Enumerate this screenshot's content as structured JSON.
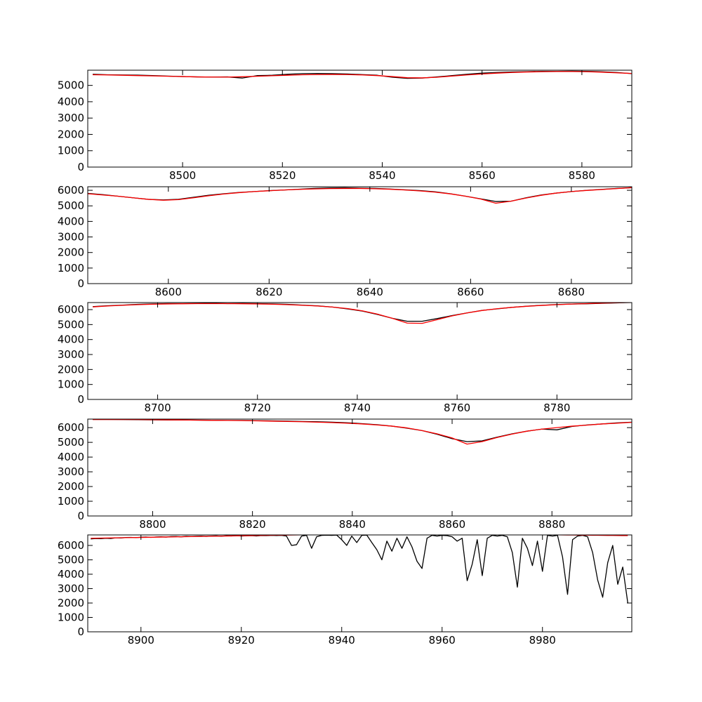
{
  "chart_data": [
    {
      "type": "line",
      "x": [
        8482,
        8485,
        8488,
        8491,
        8494,
        8497,
        8500,
        8503,
        8506,
        8509,
        8512,
        8515,
        8518,
        8521,
        8524,
        8527,
        8530,
        8533,
        8536,
        8539,
        8542,
        8545,
        8548,
        8551,
        8554,
        8557,
        8560,
        8563,
        8566,
        8569,
        8572,
        8575,
        8578,
        8581,
        8584,
        8587,
        8590
      ],
      "xlim": [
        8481,
        8590
      ],
      "ylim": [
        0,
        5930
      ],
      "xticks": [
        8500,
        8520,
        8540,
        8560,
        8580
      ],
      "yticks": [
        0,
        1000,
        2000,
        3000,
        4000,
        5000
      ],
      "series": [
        {
          "color": "#000000",
          "values": [
            5680,
            5650,
            5640,
            5630,
            5600,
            5570,
            5540,
            5520,
            5510,
            5520,
            5450,
            5600,
            5620,
            5680,
            5720,
            5730,
            5720,
            5700,
            5660,
            5620,
            5500,
            5430,
            5450,
            5520,
            5600,
            5680,
            5750,
            5790,
            5820,
            5840,
            5860,
            5860,
            5870,
            5860,
            5830,
            5790,
            5720
          ]
        },
        {
          "color": "#ff0000",
          "values": [
            5650,
            5640,
            5620,
            5600,
            5580,
            5560,
            5540,
            5520,
            5510,
            5510,
            5530,
            5560,
            5590,
            5620,
            5650,
            5660,
            5670,
            5660,
            5640,
            5600,
            5540,
            5470,
            5460,
            5500,
            5570,
            5640,
            5700,
            5750,
            5790,
            5820,
            5840,
            5850,
            5850,
            5840,
            5810,
            5770,
            5730
          ]
        }
      ]
    },
    {
      "type": "line",
      "x": [
        8584,
        8587,
        8590,
        8593,
        8596,
        8599,
        8602,
        8605,
        8608,
        8611,
        8614,
        8617,
        8620,
        8623,
        8626,
        8629,
        8632,
        8635,
        8638,
        8641,
        8644,
        8647,
        8650,
        8653,
        8656,
        8659,
        8662,
        8665,
        8668,
        8671,
        8674,
        8677,
        8680,
        8683,
        8686,
        8689,
        8692
      ],
      "xlim": [
        8584,
        8692
      ],
      "ylim": [
        0,
        6230
      ],
      "xticks": [
        8600,
        8620,
        8640,
        8660,
        8680
      ],
      "yticks": [
        0,
        1000,
        2000,
        3000,
        4000,
        5000,
        6000
      ],
      "series": [
        {
          "color": "#000000",
          "values": [
            5800,
            5720,
            5620,
            5520,
            5420,
            5380,
            5420,
            5550,
            5680,
            5780,
            5860,
            5920,
            5980,
            6020,
            6070,
            6120,
            6150,
            6160,
            6140,
            6120,
            6080,
            6030,
            5980,
            5900,
            5780,
            5620,
            5450,
            5280,
            5300,
            5520,
            5700,
            5820,
            5920,
            6000,
            6060,
            6120,
            6170
          ]
        },
        {
          "color": "#ff0000",
          "values": [
            5780,
            5700,
            5620,
            5520,
            5420,
            5360,
            5400,
            5520,
            5650,
            5760,
            5850,
            5920,
            5970,
            6020,
            6060,
            6090,
            6110,
            6120,
            6120,
            6100,
            6070,
            6020,
            5960,
            5880,
            5770,
            5620,
            5440,
            5170,
            5300,
            5500,
            5680,
            5820,
            5920,
            5990,
            6050,
            6110,
            6170
          ]
        }
      ]
    },
    {
      "type": "line",
      "x": [
        8687,
        8690,
        8693,
        8696,
        8699,
        8702,
        8705,
        8708,
        8711,
        8714,
        8717,
        8720,
        8723,
        8726,
        8729,
        8732,
        8735,
        8738,
        8741,
        8744,
        8747,
        8750,
        8753,
        8756,
        8759,
        8762,
        8765,
        8768,
        8771,
        8774,
        8777,
        8780,
        8783,
        8786,
        8789,
        8792,
        8795
      ],
      "xlim": [
        8686,
        8795
      ],
      "ylim": [
        0,
        6470
      ],
      "xticks": [
        8700,
        8720,
        8740,
        8760,
        8780
      ],
      "yticks": [
        0,
        1000,
        2000,
        3000,
        4000,
        5000,
        6000
      ],
      "series": [
        {
          "color": "#000000",
          "values": [
            6200,
            6260,
            6300,
            6350,
            6380,
            6400,
            6400,
            6410,
            6420,
            6400,
            6410,
            6400,
            6380,
            6350,
            6300,
            6250,
            6170,
            6050,
            5900,
            5680,
            5420,
            5220,
            5220,
            5400,
            5600,
            5780,
            5950,
            6050,
            6150,
            6230,
            6290,
            6340,
            6370,
            6390,
            6420,
            6450,
            6480
          ]
        },
        {
          "color": "#ff0000",
          "values": [
            6180,
            6240,
            6290,
            6330,
            6360,
            6380,
            6390,
            6400,
            6400,
            6400,
            6390,
            6380,
            6360,
            6330,
            6290,
            6240,
            6170,
            6070,
            5920,
            5700,
            5420,
            5100,
            5080,
            5330,
            5580,
            5780,
            5940,
            6060,
            6150,
            6220,
            6280,
            6330,
            6370,
            6400,
            6430,
            6460,
            6480
          ]
        }
      ]
    },
    {
      "type": "line",
      "x": [
        8788,
        8791,
        8794,
        8797,
        8800,
        8803,
        8806,
        8809,
        8812,
        8815,
        8818,
        8821,
        8824,
        8827,
        8830,
        8833,
        8836,
        8839,
        8842,
        8845,
        8848,
        8851,
        8854,
        8857,
        8860,
        8863,
        8866,
        8869,
        8872,
        8875,
        8878,
        8881,
        8884,
        8887,
        8890,
        8893,
        8896
      ],
      "xlim": [
        8787,
        8896
      ],
      "ylim": [
        0,
        6580
      ],
      "xticks": [
        8800,
        8820,
        8840,
        8860,
        8880
      ],
      "yticks": [
        0,
        1000,
        2000,
        3000,
        4000,
        5000,
        6000
      ],
      "series": [
        {
          "color": "#000000",
          "values": [
            6560,
            6560,
            6550,
            6540,
            6530,
            6520,
            6520,
            6510,
            6500,
            6490,
            6490,
            6470,
            6460,
            6440,
            6420,
            6400,
            6370,
            6330,
            6270,
            6200,
            6100,
            5960,
            5800,
            5550,
            5250,
            5050,
            5100,
            5350,
            5580,
            5760,
            5900,
            5850,
            6080,
            6180,
            6250,
            6320,
            6370
          ]
        },
        {
          "color": "#ff0000",
          "values": [
            6550,
            6550,
            6550,
            6550,
            6540,
            6530,
            6520,
            6510,
            6500,
            6490,
            6480,
            6460,
            6440,
            6420,
            6400,
            6370,
            6340,
            6300,
            6250,
            6180,
            6100,
            5980,
            5800,
            5580,
            5300,
            4880,
            5050,
            5330,
            5560,
            5760,
            5900,
            6000,
            6100,
            6170,
            6250,
            6300,
            6360
          ]
        }
      ]
    },
    {
      "type": "line",
      "x": [
        8890,
        8891,
        8892,
        8893,
        8894,
        8895,
        8896,
        8897,
        8898,
        8899,
        8900,
        8901,
        8902,
        8903,
        8904,
        8905,
        8906,
        8907,
        8908,
        8909,
        8910,
        8911,
        8912,
        8913,
        8914,
        8915,
        8916,
        8917,
        8918,
        8919,
        8920,
        8921,
        8922,
        8923,
        8924,
        8925,
        8926,
        8927,
        8928,
        8929,
        8930,
        8931,
        8932,
        8933,
        8934,
        8935,
        8936,
        8937,
        8938,
        8939,
        8940,
        8941,
        8942,
        8943,
        8944,
        8945,
        8946,
        8947,
        8948,
        8949,
        8950,
        8951,
        8952,
        8953,
        8954,
        8955,
        8956,
        8957,
        8958,
        8959,
        8960,
        8961,
        8962,
        8963,
        8964,
        8965,
        8966,
        8967,
        8968,
        8969,
        8970,
        8971,
        8972,
        8973,
        8974,
        8975,
        8976,
        8977,
        8978,
        8979,
        8980,
        8981,
        8982,
        8983,
        8984,
        8985,
        8986,
        8987,
        8988,
        8989,
        8990,
        8991,
        8992,
        8993,
        8994,
        8995,
        8996,
        8997
      ],
      "xlim": [
        8889.4,
        8997.8
      ],
      "ylim": [
        0,
        6730
      ],
      "xticks": [
        8900,
        8920,
        8940,
        8960,
        8980
      ],
      "yticks": [
        0,
        1000,
        2000,
        3000,
        4000,
        5000,
        6000
      ],
      "series": [
        {
          "color": "#000000",
          "values": [
            6450,
            6480,
            6470,
            6500,
            6480,
            6530,
            6520,
            6550,
            6560,
            6540,
            6570,
            6580,
            6560,
            6590,
            6600,
            6580,
            6610,
            6620,
            6600,
            6630,
            6620,
            6640,
            6650,
            6630,
            6650,
            6660,
            6640,
            6670,
            6660,
            6680,
            6650,
            6670,
            6680,
            6660,
            6690,
            6680,
            6700,
            6690,
            6700,
            6650,
            6000,
            6050,
            6650,
            6700,
            5800,
            6600,
            6700,
            6710,
            6700,
            6720,
            6400,
            6000,
            6650,
            6200,
            6700,
            6720,
            6200,
            5700,
            5000,
            6300,
            5600,
            6500,
            5800,
            6600,
            5900,
            4900,
            4400,
            6500,
            6700,
            6650,
            6700,
            6680,
            6600,
            6300,
            6500,
            3550,
            4700,
            6400,
            3900,
            6500,
            6700,
            6650,
            6700,
            6600,
            5500,
            3100,
            6500,
            5800,
            4600,
            6300,
            4200,
            6700,
            6650,
            6700,
            5200,
            2600,
            6400,
            6650,
            6700,
            6600,
            5500,
            3600,
            2400,
            4800,
            6000,
            3300,
            4500,
            2000
          ]
        },
        {
          "color": "#ff0000",
          "values": [
            6500,
            6506,
            6511,
            6517,
            6523,
            6529,
            6534,
            6540,
            6546,
            6551,
            6557,
            6563,
            6569,
            6574,
            6580,
            6586,
            6591,
            6597,
            6603,
            6609,
            6614,
            6620,
            6626,
            6631,
            6637,
            6643,
            6649,
            6654,
            6660,
            6666,
            6671,
            6677,
            6683,
            6689,
            6694,
            6700,
            6705,
            6710,
            6715,
            6720,
            6725,
            6730,
            6735,
            6740,
            6745,
            6750,
            6750,
            6750,
            6750,
            6750,
            6750,
            6750,
            6750,
            6750,
            6750,
            6750,
            6750,
            6750,
            6750,
            6750,
            6750,
            6750,
            6750,
            6750,
            6750,
            6750,
            6750,
            6750,
            6750,
            6750,
            6750,
            6750,
            6750,
            6750,
            6750,
            6750,
            6750,
            6750,
            6750,
            6750,
            6750,
            6750,
            6750,
            6750,
            6750,
            6750,
            6750,
            6750,
            6750,
            6750,
            6750,
            6745,
            6740,
            6736,
            6732,
            6728,
            6724,
            6720,
            6716,
            6712,
            6708,
            6704,
            6700,
            6696,
            6692,
            6688,
            6684,
            6680
          ]
        }
      ]
    }
  ]
}
